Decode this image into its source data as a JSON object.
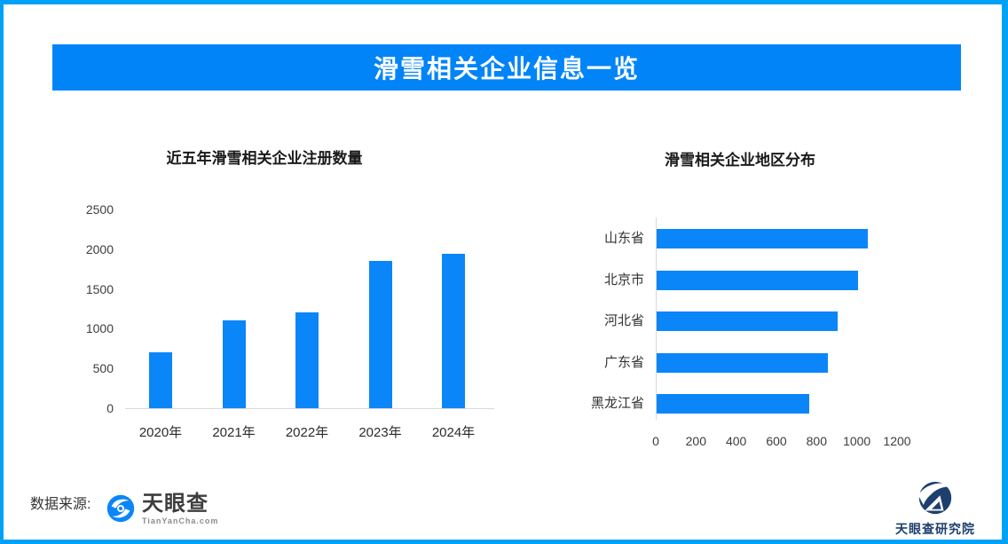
{
  "banner": {
    "title": "滑雪相关企业信息一览"
  },
  "footer": {
    "source_label": "数据来源:",
    "tyc_name": "天眼查",
    "tyc_subtext": "TianYanCha.com",
    "research_name": "天眼查研究院"
  },
  "colors": {
    "frame": "#00a2f8",
    "banner": "#0084f8",
    "bar": "#0b86f8",
    "axis": "#d9d9d9",
    "navy": "#1c3f6e"
  },
  "chart_data": [
    {
      "type": "bar",
      "orientation": "vertical",
      "title": "近五年滑雪相关企业注册数量",
      "categories": [
        "2020年",
        "2021年",
        "2022年",
        "2023年",
        "2024年"
      ],
      "values": [
        700,
        1100,
        1200,
        1850,
        1940
      ],
      "ylim": [
        0,
        2500
      ],
      "yticks": [
        0,
        500,
        1000,
        1500,
        2000,
        2500
      ],
      "grid": false,
      "bar_color": "#0b86f8"
    },
    {
      "type": "bar",
      "orientation": "horizontal",
      "title": "滑雪相关企业地区分布",
      "categories": [
        "山东省",
        "北京市",
        "河北省",
        "广东省",
        "黑龙江省"
      ],
      "values": [
        1050,
        1000,
        900,
        850,
        760
      ],
      "xlim": [
        0,
        1200
      ],
      "xticks": [
        0,
        200,
        400,
        600,
        800,
        1000,
        1200
      ],
      "grid": false,
      "bar_color": "#0b86f8"
    }
  ]
}
